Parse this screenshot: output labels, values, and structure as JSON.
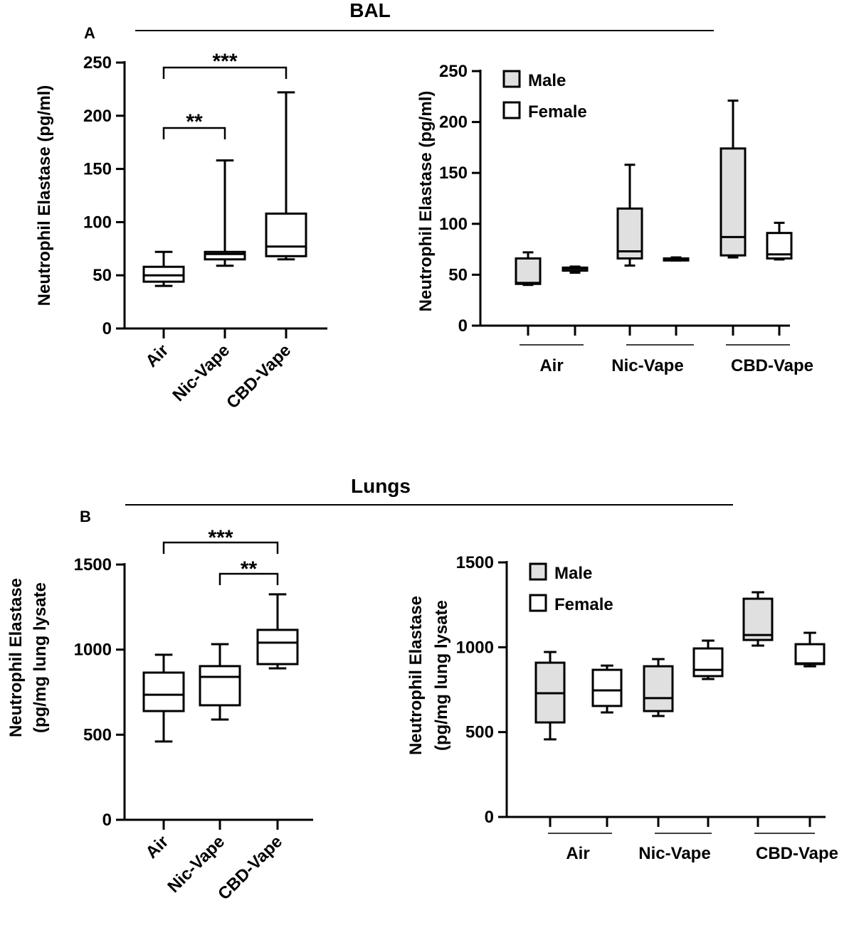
{
  "chart_data": [
    {
      "type": "box",
      "panel_label": "A",
      "section_title": "BAL",
      "ylabel": "Neutrophil Elastase (pg/ml)",
      "ylim": [
        0,
        250
      ],
      "yticks": [
        0,
        50,
        100,
        150,
        200,
        250
      ],
      "categories": [
        "Air",
        "Nic-Vape",
        "CBD-Vape"
      ],
      "boxes": [
        {
          "group": "Air",
          "fill": "#ffffff",
          "min": 40,
          "q1": 44,
          "median": 50,
          "q3": 58,
          "max": 72
        },
        {
          "group": "Nic-Vape",
          "fill": "#ffffff",
          "min": 59,
          "q1": 65,
          "median": 70,
          "q3": 72,
          "max": 158
        },
        {
          "group": "CBD-Vape",
          "fill": "#ffffff",
          "min": 65,
          "q1": 68,
          "median": 77,
          "q3": 108,
          "max": 222
        }
      ],
      "significance": [
        {
          "from": "Air",
          "to": "Nic-Vape",
          "label": "**"
        },
        {
          "from": "Air",
          "to": "CBD-Vape",
          "label": "***"
        }
      ]
    },
    {
      "type": "box",
      "ylabel": "Neutrophil Elastase (pg/ml)",
      "ylim": [
        0,
        250
      ],
      "yticks": [
        0,
        50,
        100,
        150,
        200,
        250
      ],
      "categories": [
        "Air",
        "Nic-Vape",
        "CBD-Vape"
      ],
      "legend": [
        {
          "label": "Male",
          "fill": "#e0e0e0"
        },
        {
          "label": "Female",
          "fill": "#ffffff"
        }
      ],
      "legend_position": "top-left",
      "boxes": [
        {
          "group": "Air",
          "sex": "Male",
          "fill": "#e0e0e0",
          "min": 40,
          "q1": 41,
          "median": 42,
          "q3": 66,
          "max": 72
        },
        {
          "group": "Air",
          "sex": "Female",
          "fill": "#ffffff",
          "min": 52,
          "q1": 54,
          "median": 56,
          "q3": 57,
          "max": 58
        },
        {
          "group": "Nic-Vape",
          "sex": "Male",
          "fill": "#e0e0e0",
          "min": 59,
          "q1": 66,
          "median": 73,
          "q3": 115,
          "max": 158
        },
        {
          "group": "Nic-Vape",
          "sex": "Female",
          "fill": "#ffffff",
          "min": 64,
          "q1": 64,
          "median": 65,
          "q3": 66,
          "max": 67
        },
        {
          "group": "CBD-Vape",
          "sex": "Male",
          "fill": "#e0e0e0",
          "min": 67,
          "q1": 69,
          "median": 87,
          "q3": 174,
          "max": 221
        },
        {
          "group": "CBD-Vape",
          "sex": "Female",
          "fill": "#ffffff",
          "min": 65,
          "q1": 66,
          "median": 70,
          "q3": 91,
          "max": 101
        }
      ]
    },
    {
      "type": "box",
      "panel_label": "B",
      "section_title": "Lungs",
      "ylabel": [
        "Neutrophil Elastase",
        "(pg/mg lung lysate"
      ],
      "ylim": [
        0,
        1500
      ],
      "yticks": [
        0,
        500,
        1000,
        1500
      ],
      "categories": [
        "Air",
        "Nic-Vape",
        "CBD-Vape"
      ],
      "boxes": [
        {
          "group": "Air",
          "fill": "#ffffff",
          "min": 460,
          "q1": 639,
          "median": 735,
          "q3": 865,
          "max": 970
        },
        {
          "group": "Nic-Vape",
          "fill": "#ffffff",
          "min": 589,
          "q1": 673,
          "median": 840,
          "q3": 903,
          "max": 1032
        },
        {
          "group": "CBD-Vape",
          "fill": "#ffffff",
          "min": 890,
          "q1": 915,
          "median": 1041,
          "q3": 1116,
          "max": 1325
        }
      ],
      "significance": [
        {
          "from": "Air",
          "to": "CBD-Vape",
          "label": "***"
        },
        {
          "from": "Nic-Vape",
          "to": "CBD-Vape",
          "label": "**"
        }
      ]
    },
    {
      "type": "box",
      "ylabel": [
        "Neutrophil Elastase",
        "(pg/mg lung lysate"
      ],
      "ylim": [
        0,
        1500
      ],
      "yticks": [
        0,
        500,
        1000,
        1500
      ],
      "categories": [
        "Air",
        "Nic-Vape",
        "CBD-Vape"
      ],
      "legend": [
        {
          "label": "Male",
          "fill": "#e0e0e0"
        },
        {
          "label": "Female",
          "fill": "#ffffff"
        }
      ],
      "legend_position": "top-left",
      "boxes": [
        {
          "group": "Air",
          "sex": "Male",
          "fill": "#e0e0e0",
          "min": 457,
          "q1": 557,
          "median": 729,
          "q3": 909,
          "max": 972
        },
        {
          "group": "Air",
          "sex": "Female",
          "fill": "#ffffff",
          "min": 616,
          "q1": 654,
          "median": 746,
          "q3": 867,
          "max": 892
        },
        {
          "group": "Nic-Vape",
          "sex": "Male",
          "fill": "#e0e0e0",
          "min": 595,
          "q1": 624,
          "median": 700,
          "q3": 888,
          "max": 930
        },
        {
          "group": "Nic-Vape",
          "sex": "Female",
          "fill": "#ffffff",
          "min": 813,
          "q1": 830,
          "median": 867,
          "q3": 993,
          "max": 1039
        },
        {
          "group": "CBD-Vape",
          "sex": "Male",
          "fill": "#e0e0e0",
          "min": 1010,
          "q1": 1043,
          "median": 1072,
          "q3": 1286,
          "max": 1324
        },
        {
          "group": "CBD-Vape",
          "sex": "Female",
          "fill": "#ffffff",
          "min": 888,
          "q1": 901,
          "median": 905,
          "q3": 1018,
          "max": 1085
        }
      ]
    }
  ]
}
